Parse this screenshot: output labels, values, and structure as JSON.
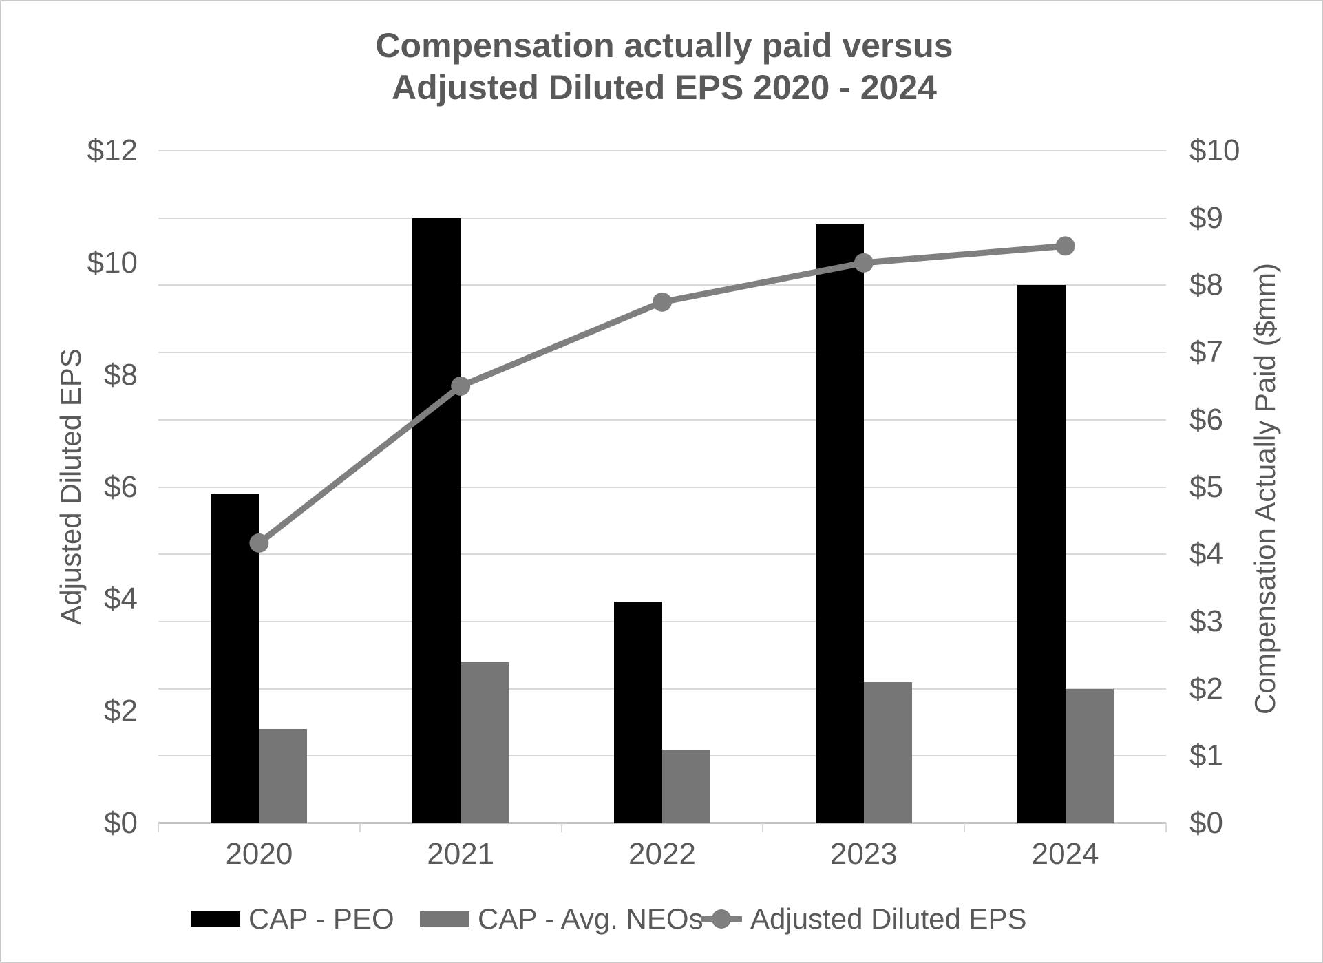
{
  "title": {
    "line1": "Compensation actually paid versus",
    "line2": "Adjusted Diluted EPS 2020 - 2024"
  },
  "left_axis": {
    "title": "Adjusted Diluted EPS",
    "ticks": [
      "$0",
      "$2",
      "$4",
      "$6",
      "$8",
      "$10",
      "$12"
    ],
    "min": 0,
    "max": 12,
    "step": 2
  },
  "right_axis": {
    "title": "Compensation Actually Paid ($mm)",
    "ticks": [
      "$0",
      "$1",
      "$2",
      "$3",
      "$4",
      "$5",
      "$6",
      "$7",
      "$8",
      "$9",
      "$10"
    ],
    "min": 0,
    "max": 10,
    "step": 1
  },
  "x_axis": {
    "categories": [
      "2020",
      "2021",
      "2022",
      "2023",
      "2024"
    ]
  },
  "legend": [
    {
      "label": "CAP - PEO",
      "symbol": "black-bar-swatch"
    },
    {
      "label": "CAP - Avg. NEOs",
      "symbol": "gray-bar-swatch"
    },
    {
      "label": "Adjusted Diluted EPS",
      "symbol": "line-marker-swatch"
    }
  ],
  "colors": {
    "text": "#595959",
    "gridline": "#d9d9d9",
    "axis_line": "#c4c4c4",
    "bar_peo": "#000000",
    "bar_neos": "#767676",
    "eps_line": "#7f7f7f"
  },
  "chart_data": {
    "type": "combo",
    "title": "Compensation actually paid versus Adjusted Diluted EPS 2020 - 2024",
    "categories": [
      "2020",
      "2021",
      "2022",
      "2023",
      "2024"
    ],
    "series": [
      {
        "name": "CAP - PEO",
        "type": "bar",
        "axis": "right",
        "values": [
          4.9,
          9.0,
          3.3,
          8.9,
          8.0
        ]
      },
      {
        "name": "CAP - Avg. NEOs",
        "type": "bar",
        "axis": "right",
        "values": [
          1.4,
          2.4,
          1.1,
          2.1,
          2.0
        ]
      },
      {
        "name": "Adjusted Diluted EPS",
        "type": "line",
        "axis": "left",
        "values": [
          5.0,
          7.8,
          9.3,
          10.0,
          10.3
        ]
      }
    ],
    "left_ylabel": "Adjusted Diluted EPS",
    "right_ylabel": "Compensation Actually Paid ($mm)",
    "left_ylim": [
      0,
      12
    ],
    "right_ylim": [
      0,
      10
    ],
    "grid": true,
    "legend_position": "bottom"
  }
}
